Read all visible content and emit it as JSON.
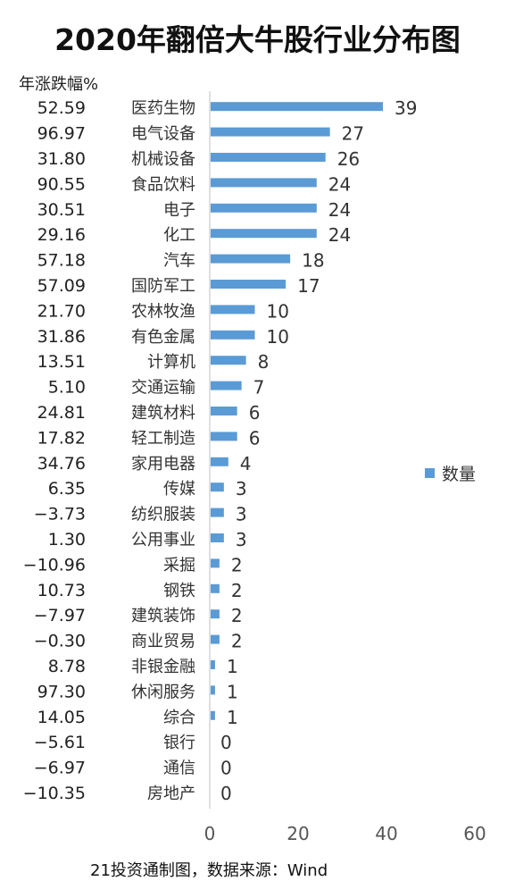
{
  "chart_data": {
    "type": "bar",
    "orientation": "horizontal",
    "title": "2020年翻倍大牛股行业分布图",
    "percent_column_header": "年涨跌幅%",
    "categories": [
      "医药生物",
      "电气设备",
      "机械设备",
      "食品饮料",
      "电子",
      "化工",
      "汽车",
      "国防军工",
      "农林牧渔",
      "有色金属",
      "计算机",
      "交通运输",
      "建筑材料",
      "轻工制造",
      "家用电器",
      "传媒",
      "纺织服装",
      "公用事业",
      "采掘",
      "钢铁",
      "建筑装饰",
      "商业贸易",
      "非银金融",
      "休闲服务",
      "综合",
      "银行",
      "通信",
      "房地产"
    ],
    "annual_change_pct": [
      "52.59",
      "96.97",
      "31.80",
      "90.55",
      "30.51",
      "29.16",
      "57.18",
      "57.09",
      "21.70",
      "31.86",
      "13.51",
      "5.10",
      "24.81",
      "17.82",
      "34.76",
      "6.35",
      "−3.73",
      "1.30",
      "−10.96",
      "10.73",
      "−7.97",
      "−0.30",
      "8.78",
      "97.30",
      "14.05",
      "−5.61",
      "−6.97",
      "−10.35"
    ],
    "series": [
      {
        "name": "数量",
        "values": [
          39,
          27,
          26,
          24,
          24,
          24,
          18,
          17,
          10,
          10,
          8,
          7,
          6,
          6,
          4,
          3,
          3,
          3,
          2,
          2,
          2,
          2,
          1,
          1,
          1,
          0,
          0,
          0
        ]
      }
    ],
    "xlim": [
      0,
      60
    ],
    "xticks": [
      0,
      20,
      40,
      60
    ],
    "bar_color": "#5b9bd5",
    "legend_position": "right",
    "grid": false,
    "source": "21投资通制图，数据来源：Wind"
  }
}
